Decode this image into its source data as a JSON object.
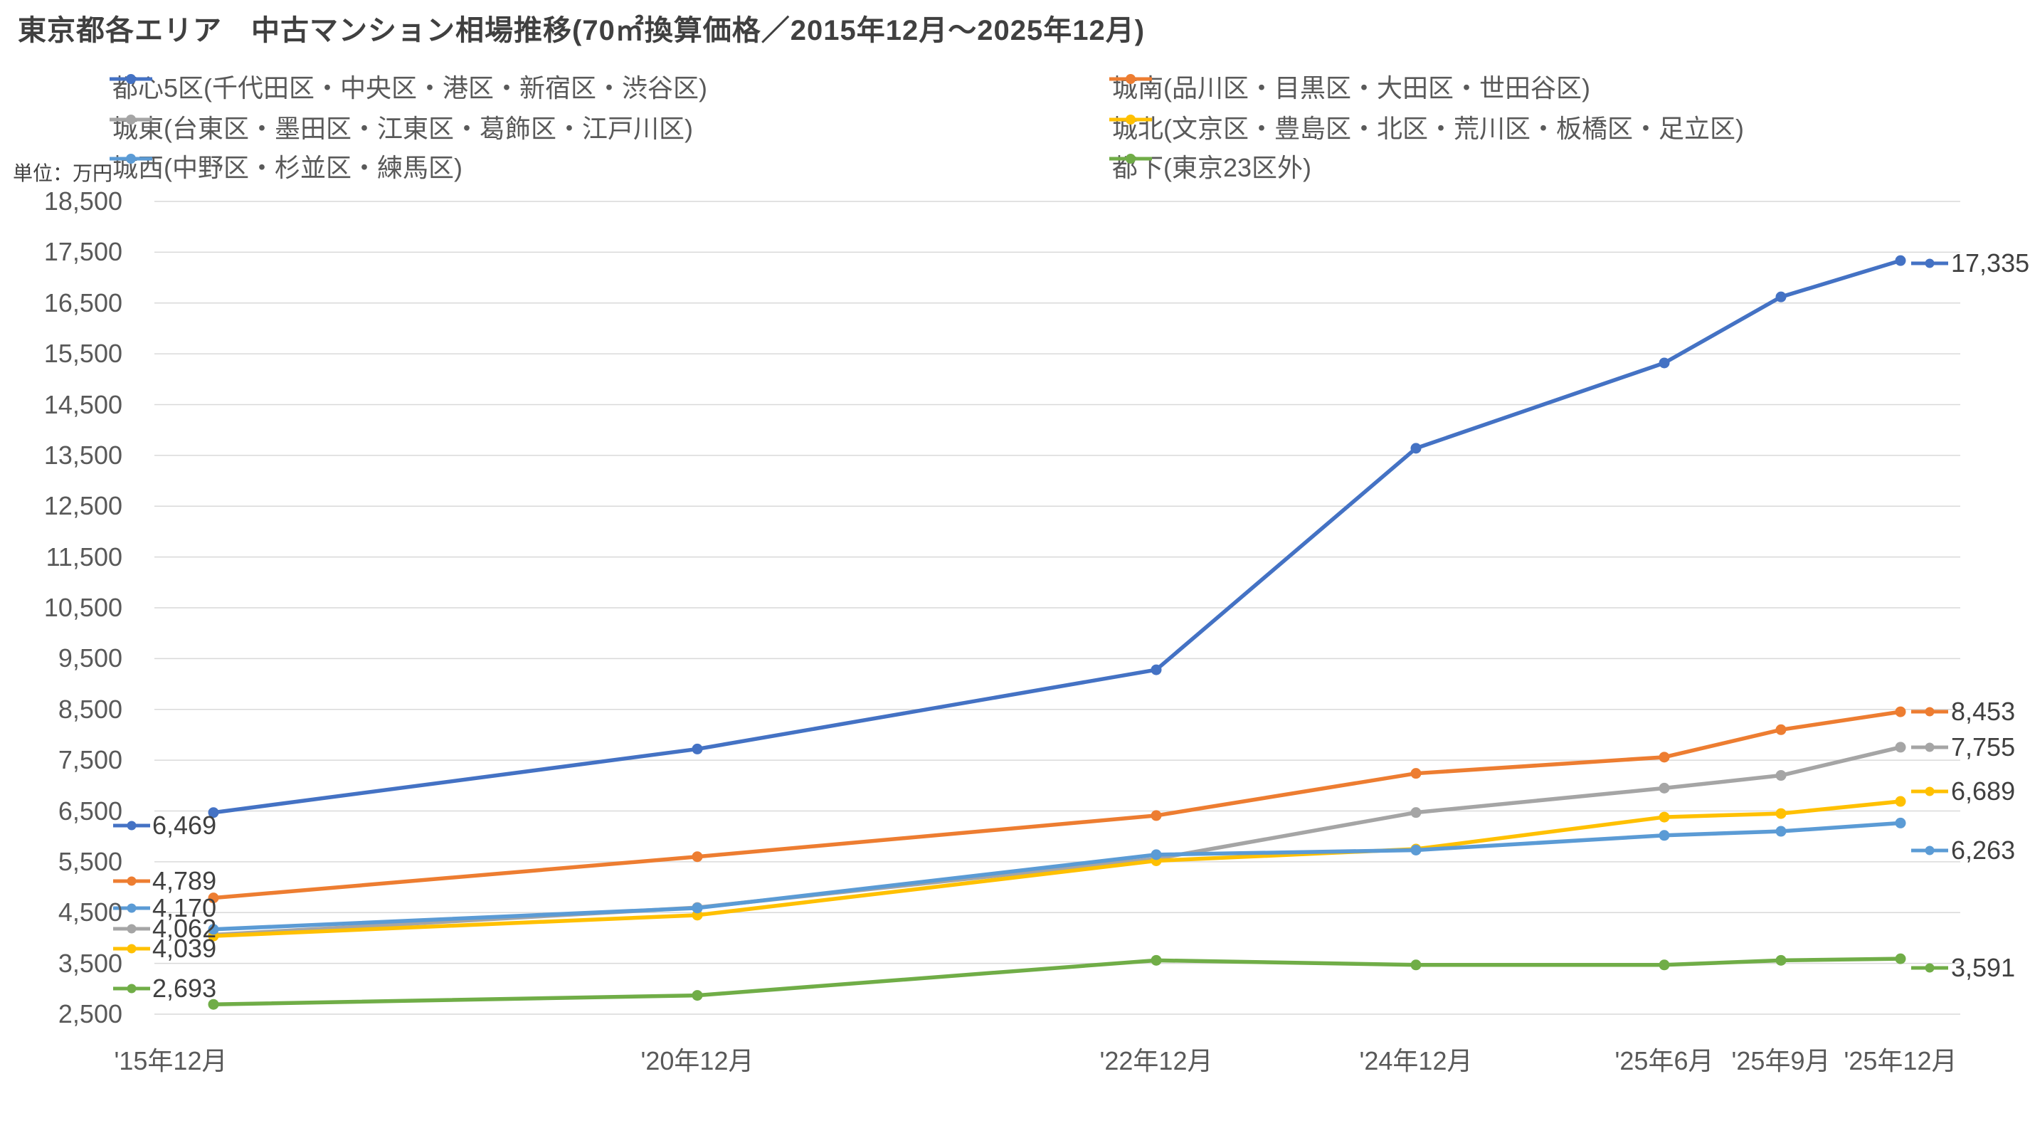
{
  "title": "東京都各エリア　中古マンション相場推移(70㎡換算価格／2015年12月～2025年12月)",
  "unit_label": "単位：万円",
  "chart_data": {
    "type": "line",
    "title": "東京都各エリア　中古マンション相場推移(70㎡換算価格／2015年12月～2025年12月)",
    "ylabel": "単位：万円",
    "ylim": [
      2500,
      18500
    ],
    "ytick_step": 1000,
    "grid": true,
    "legend_position": "top",
    "categories": [
      "'15年12月",
      "'20年12月",
      "'22年12月",
      "'24年12月",
      "'25年6月",
      "'25年9月",
      "'25年12月"
    ],
    "series": [
      {
        "name": "都心5区(千代田区・中央区・港区・新宿区・渋谷区)",
        "color": "#4472C4",
        "values": [
          6469,
          7720,
          9280,
          13640,
          15320,
          16620,
          17335
        ],
        "start_label": "6,469",
        "end_label": "17,335"
      },
      {
        "name": "城南(品川区・目黒区・大田区・世田谷区)",
        "color": "#ED7D31",
        "values": [
          4789,
          5600,
          6410,
          7240,
          7560,
          8100,
          8453
        ],
        "start_label": "4,789",
        "end_label": "8,453"
      },
      {
        "name": "城東(台東区・墨田区・江東区・葛飾区・江戸川区)",
        "color": "#A5A5A5",
        "values": [
          4062,
          4600,
          5560,
          6470,
          6950,
          7200,
          7755
        ],
        "start_label": "4,062",
        "end_label": "7,755"
      },
      {
        "name": "城北(文京区・豊島区・北区・荒川区・板橋区・足立区)",
        "color": "#FFC000",
        "values": [
          4039,
          4450,
          5520,
          5750,
          6380,
          6450,
          6689
        ],
        "start_label": "4,039",
        "end_label": "6,689"
      },
      {
        "name": "城西(中野区・杉並区・練馬区)",
        "color": "#5B9BD5",
        "values": [
          4170,
          4590,
          5640,
          5730,
          6020,
          6100,
          6263
        ],
        "start_label": "4,170",
        "end_label": "6,263"
      },
      {
        "name": "都下(東京23区外)",
        "color": "#70AD47",
        "values": [
          2693,
          2870,
          3560,
          3470,
          3470,
          3560,
          3591
        ],
        "start_label": "2,693",
        "end_label": "3,591"
      }
    ],
    "gridline_color": "#D9D9D9",
    "tick_text_color": "#595959",
    "label_text_color": "#404040"
  }
}
